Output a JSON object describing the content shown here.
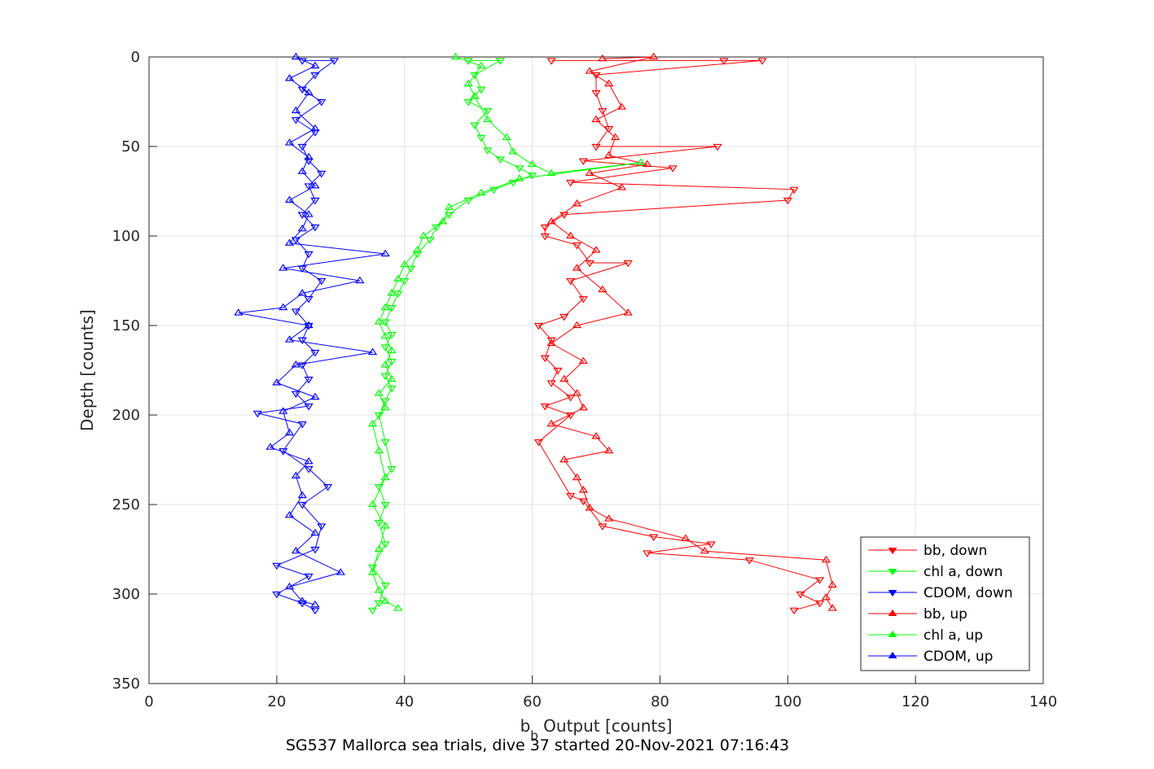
{
  "chart_data": {
    "type": "scatter",
    "xlabel_main": "b",
    "xlabel_sub": "b",
    "xlabel_rest": " Output [counts]",
    "ylabel": "Depth [counts]",
    "caption": "SG537 Mallorca sea trials, dive 37 started 20-Nov-2021 07:16:43",
    "xlim": [
      0,
      140
    ],
    "ylim": [
      0,
      350
    ],
    "y_reversed": true,
    "xticks": [
      0,
      20,
      40,
      60,
      80,
      100,
      120,
      140
    ],
    "yticks": [
      0,
      50,
      100,
      150,
      200,
      250,
      300,
      350
    ],
    "grid": true,
    "legend_position": "bottom-right",
    "colors": {
      "bb": "#ff0000",
      "chl": "#00ff00",
      "cdom": "#0000ff"
    },
    "series": [
      {
        "name": "bb, down",
        "color": "#ff0000",
        "marker": "triangle-down",
        "points": [
          [
            63,
            2
          ],
          [
            90,
            2
          ],
          [
            96,
            2
          ],
          [
            70,
            10
          ],
          [
            70,
            20
          ],
          [
            71,
            30
          ],
          [
            72,
            40
          ],
          [
            70,
            50
          ],
          [
            89,
            50
          ],
          [
            68,
            58
          ],
          [
            82,
            62
          ],
          [
            66,
            70
          ],
          [
            101,
            74
          ],
          [
            100,
            80
          ],
          [
            65,
            88
          ],
          [
            62,
            95
          ],
          [
            62,
            100
          ],
          [
            67,
            105
          ],
          [
            69,
            115
          ],
          [
            75,
            115
          ],
          [
            66,
            125
          ],
          [
            68,
            135
          ],
          [
            65,
            145
          ],
          [
            61,
            150
          ],
          [
            63,
            158
          ],
          [
            62,
            168
          ],
          [
            64,
            175
          ],
          [
            63,
            182
          ],
          [
            66,
            190
          ],
          [
            62,
            195
          ],
          [
            66,
            200
          ],
          [
            61,
            215
          ],
          [
            66,
            245
          ],
          [
            68,
            248
          ],
          [
            71,
            262
          ],
          [
            79,
            268
          ],
          [
            88,
            272
          ],
          [
            78,
            277
          ],
          [
            94,
            281
          ],
          [
            105,
            292
          ],
          [
            102,
            300
          ],
          [
            105,
            305
          ],
          [
            101,
            309
          ]
        ]
      },
      {
        "name": "chl a, down",
        "color": "#00ff00",
        "marker": "triangle-down",
        "points": [
          [
            50,
            2
          ],
          [
            55,
            2
          ],
          [
            51,
            10
          ],
          [
            52,
            18
          ],
          [
            50,
            25
          ],
          [
            53,
            30
          ],
          [
            51,
            38
          ],
          [
            52,
            45
          ],
          [
            53,
            52
          ],
          [
            55,
            57
          ],
          [
            58,
            62
          ],
          [
            60,
            66
          ],
          [
            57,
            70
          ],
          [
            54,
            74
          ],
          [
            50,
            80
          ],
          [
            47,
            88
          ],
          [
            45,
            95
          ],
          [
            44,
            102
          ],
          [
            42,
            110
          ],
          [
            41,
            118
          ],
          [
            40,
            125
          ],
          [
            39,
            132
          ],
          [
            38,
            140
          ],
          [
            37,
            148
          ],
          [
            38,
            155
          ],
          [
            37,
            162
          ],
          [
            38,
            170
          ],
          [
            37,
            178
          ],
          [
            38,
            185
          ],
          [
            37,
            192
          ],
          [
            36,
            200
          ],
          [
            37,
            215
          ],
          [
            38,
            230
          ],
          [
            36,
            240
          ],
          [
            37,
            250
          ],
          [
            36,
            260
          ],
          [
            37,
            272
          ],
          [
            35,
            285
          ],
          [
            37,
            295
          ],
          [
            36,
            305
          ],
          [
            35,
            309
          ]
        ]
      },
      {
        "name": "CDOM, down",
        "color": "#0000ff",
        "marker": "triangle-down",
        "points": [
          [
            24,
            2
          ],
          [
            29,
            2
          ],
          [
            26,
            10
          ],
          [
            24,
            18
          ],
          [
            27,
            25
          ],
          [
            23,
            35
          ],
          [
            26,
            42
          ],
          [
            24,
            50
          ],
          [
            25,
            58
          ],
          [
            27,
            65
          ],
          [
            25,
            72
          ],
          [
            26,
            80
          ],
          [
            24,
            88
          ],
          [
            26,
            95
          ],
          [
            23,
            102
          ],
          [
            25,
            110
          ],
          [
            24,
            118
          ],
          [
            27,
            125
          ],
          [
            25,
            135
          ],
          [
            23,
            142
          ],
          [
            25,
            150
          ],
          [
            24,
            158
          ],
          [
            26,
            165
          ],
          [
            24,
            172
          ],
          [
            25,
            180
          ],
          [
            23,
            188
          ],
          [
            25,
            195
          ],
          [
            17,
            199
          ],
          [
            24,
            205
          ],
          [
            21,
            220
          ],
          [
            25,
            230
          ],
          [
            28,
            240
          ],
          [
            24,
            250
          ],
          [
            27,
            262
          ],
          [
            26,
            275
          ],
          [
            20,
            284
          ],
          [
            25,
            290
          ],
          [
            20,
            300
          ],
          [
            24,
            305
          ],
          [
            26,
            309
          ]
        ]
      },
      {
        "name": "bb, up",
        "color": "#ff0000",
        "marker": "triangle-up",
        "points": [
          [
            71,
            1
          ],
          [
            79,
            0
          ],
          [
            69,
            8
          ],
          [
            72,
            15
          ],
          [
            74,
            28
          ],
          [
            70,
            35
          ],
          [
            73,
            45
          ],
          [
            72,
            55
          ],
          [
            78,
            60
          ],
          [
            69,
            65
          ],
          [
            74,
            73
          ],
          [
            67,
            82
          ],
          [
            63,
            92
          ],
          [
            66,
            100
          ],
          [
            70,
            108
          ],
          [
            67,
            118
          ],
          [
            71,
            130
          ],
          [
            75,
            143
          ],
          [
            67,
            150
          ],
          [
            63,
            160
          ],
          [
            68,
            170
          ],
          [
            65,
            180
          ],
          [
            67,
            188
          ],
          [
            68,
            196
          ],
          [
            63,
            205
          ],
          [
            70,
            212
          ],
          [
            72,
            220
          ],
          [
            65,
            225
          ],
          [
            67,
            235
          ],
          [
            68,
            242
          ],
          [
            69,
            252
          ],
          [
            72,
            258
          ],
          [
            84,
            269
          ],
          [
            87,
            276
          ],
          [
            106,
            281
          ],
          [
            107,
            295
          ],
          [
            106,
            302
          ],
          [
            107,
            308
          ]
        ]
      },
      {
        "name": "chl a, up",
        "color": "#00ff00",
        "marker": "triangle-up",
        "points": [
          [
            48,
            0
          ],
          [
            52,
            5
          ],
          [
            50,
            15
          ],
          [
            51,
            22
          ],
          [
            53,
            35
          ],
          [
            56,
            45
          ],
          [
            57,
            53
          ],
          [
            60,
            60
          ],
          [
            63,
            65
          ],
          [
            77,
            59
          ],
          [
            58,
            68
          ],
          [
            52,
            76
          ],
          [
            47,
            84
          ],
          [
            46,
            92
          ],
          [
            43,
            100
          ],
          [
            42,
            108
          ],
          [
            40,
            116
          ],
          [
            39,
            124
          ],
          [
            38,
            132
          ],
          [
            37,
            140
          ],
          [
            36,
            148
          ],
          [
            37,
            156
          ],
          [
            38,
            164
          ],
          [
            37,
            172
          ],
          [
            38,
            180
          ],
          [
            36,
            188
          ],
          [
            37,
            196
          ],
          [
            35,
            205
          ],
          [
            36,
            220
          ],
          [
            37,
            235
          ],
          [
            35,
            250
          ],
          [
            37,
            262
          ],
          [
            36,
            275
          ],
          [
            35,
            288
          ],
          [
            36,
            298
          ],
          [
            37,
            304
          ],
          [
            39,
            308
          ]
        ]
      },
      {
        "name": "CDOM, up",
        "color": "#0000ff",
        "marker": "triangle-up",
        "points": [
          [
            23,
            0
          ],
          [
            26,
            5
          ],
          [
            22,
            12
          ],
          [
            25,
            20
          ],
          [
            23,
            30
          ],
          [
            26,
            40
          ],
          [
            22,
            48
          ],
          [
            25,
            56
          ],
          [
            24,
            64
          ],
          [
            26,
            72
          ],
          [
            22,
            80
          ],
          [
            25,
            88
          ],
          [
            24,
            96
          ],
          [
            22,
            104
          ],
          [
            37,
            110
          ],
          [
            21,
            118
          ],
          [
            33,
            125
          ],
          [
            24,
            132
          ],
          [
            21,
            140
          ],
          [
            14,
            143
          ],
          [
            25,
            150
          ],
          [
            22,
            158
          ],
          [
            35,
            165
          ],
          [
            23,
            172
          ],
          [
            20,
            182
          ],
          [
            26,
            190
          ],
          [
            21,
            198
          ],
          [
            22,
            210
          ],
          [
            19,
            218
          ],
          [
            25,
            226
          ],
          [
            23,
            234
          ],
          [
            24,
            245
          ],
          [
            22,
            256
          ],
          [
            26,
            266
          ],
          [
            23,
            276
          ],
          [
            30,
            288
          ],
          [
            22,
            296
          ],
          [
            24,
            304
          ],
          [
            26,
            306
          ]
        ]
      }
    ]
  }
}
